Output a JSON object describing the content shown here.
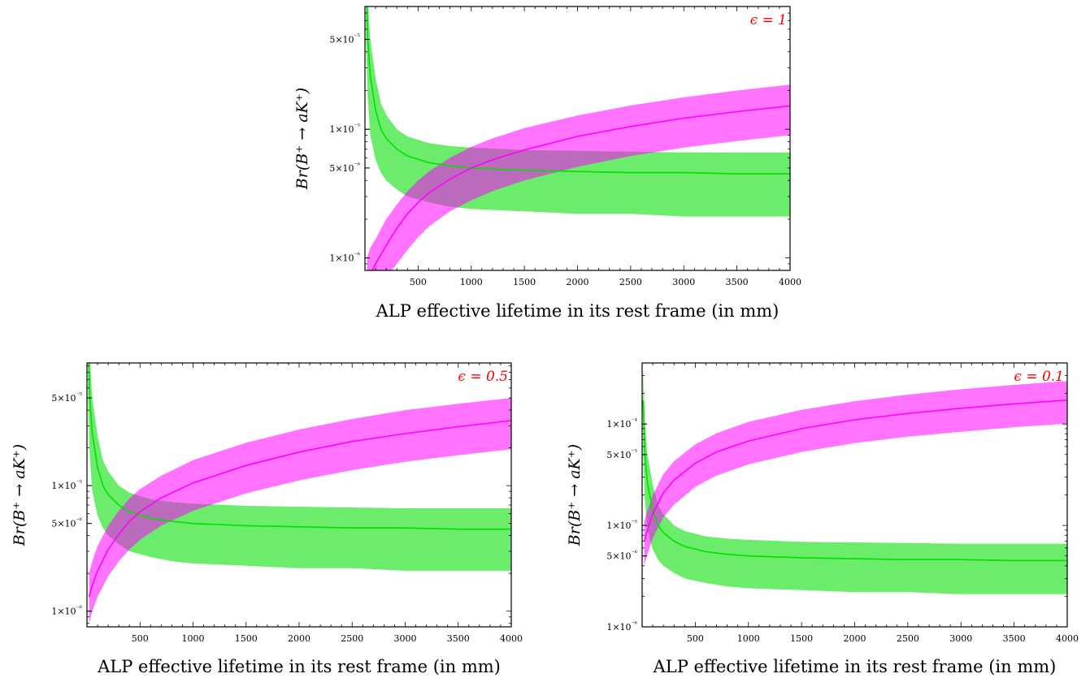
{
  "chart_data": [
    {
      "type": "line",
      "annotation": "ϵ = 1",
      "xlabel": "ALP effective lifetime in its rest frame (in mm)",
      "ylabel": "Br(B⁺ → aK⁺)",
      "yscale": "log",
      "xlim": [
        0,
        4000
      ],
      "ylim": [
        8e-07,
        9e-05
      ],
      "xticks": [
        500,
        1000,
        1500,
        2000,
        2500,
        3000,
        3500,
        4000
      ],
      "xtick_labels": [
        "500",
        "1000",
        "1500",
        "2000",
        "2500",
        "3000",
        "3500",
        "4000"
      ],
      "yticks": [
        1e-06,
        5e-06,
        1e-05,
        5e-05
      ],
      "ytick_labels": [
        "1×10⁻⁶",
        "5×10⁻⁶",
        "1×10⁻⁵",
        "5×10⁻⁵"
      ],
      "grid": false,
      "colors": {
        "series_1": "#00e000",
        "series_2": "#ff00ff",
        "annotation": "#ff0000"
      },
      "series": [
        {
          "x": [
            10,
            25,
            50,
            100,
            150,
            200,
            300,
            400,
            600,
            800,
            1000,
            1500,
            2000,
            2500,
            3000,
            3500,
            4000
          ],
          "central": [
            0.00017,
            5.2e-05,
            2.6e-05,
            1.4e-05,
            1e-05,
            8.5e-06,
            7e-06,
            6.2e-06,
            5.5e-06,
            5.2e-06,
            5e-06,
            4.8e-06,
            4.7e-06,
            4.6e-06,
            4.6e-06,
            4.5e-06,
            4.5e-06
          ],
          "upper": [
            0.00035,
            0.00011,
            5e-05,
            2.5e-05,
            1.6e-05,
            1.3e-05,
            1e-05,
            8.8e-06,
            7.8e-06,
            7.4e-06,
            7.2e-06,
            6.9e-06,
            6.8e-06,
            6.7e-06,
            6.6e-06,
            6.6e-06,
            6.6e-06
          ],
          "lower": [
            5e-05,
            1.8e-05,
            9e-06,
            5.8e-06,
            4.6e-06,
            4e-06,
            3.4e-06,
            3e-06,
            2.7e-06,
            2.5e-06,
            2.4e-06,
            2.3e-06,
            2.2e-06,
            2.2e-06,
            2.1e-06,
            2.1e-06,
            2.1e-06
          ]
        },
        {
          "x": [
            20,
            50,
            100,
            200,
            300,
            400,
            500,
            600,
            800,
            1000,
            1200,
            1500,
            2000,
            2500,
            3000,
            3500,
            4000
          ],
          "central": [
            6e-07,
            7.5e-07,
            9e-07,
            1.25e-06,
            1.7e-06,
            2.2e-06,
            2.7e-06,
            3.2e-06,
            4.1e-06,
            5e-06,
            5.8e-06,
            6.9e-06,
            8.8e-06,
            1.05e-05,
            1.22e-05,
            1.37e-05,
            1.52e-05
          ],
          "upper": [
            1e-06,
            1.2e-06,
            1.4e-06,
            2e-06,
            2.6e-06,
            3.3e-06,
            4e-06,
            4.7e-06,
            6e-06,
            7.3e-06,
            8.5e-06,
            1.02e-05,
            1.28e-05,
            1.53e-05,
            1.77e-05,
            2e-05,
            2.22e-05
          ],
          "lower": [
            4e-07,
            4.5e-07,
            5.5e-07,
            7e-07,
            9e-07,
            1.15e-06,
            1.45e-06,
            1.75e-06,
            2.3e-06,
            2.8e-06,
            3.3e-06,
            4e-06,
            5.1e-06,
            6.2e-06,
            7.2e-06,
            8.1e-06,
            9e-06
          ]
        }
      ]
    },
    {
      "type": "line",
      "annotation": "ϵ = 0.5",
      "xlabel": "ALP effective lifetime in its rest frame (in mm)",
      "ylabel": "Br(B⁺ → aK⁺)",
      "yscale": "log",
      "xlim": [
        0,
        4000
      ],
      "ylim": [
        7.5e-07,
        9.5e-05
      ],
      "xticks": [
        500,
        1000,
        1500,
        2000,
        2500,
        3000,
        3500,
        4000
      ],
      "xtick_labels": [
        "500",
        "1000",
        "1500",
        "2000",
        "2500",
        "3000",
        "3500",
        "4000"
      ],
      "yticks": [
        1e-06,
        5e-06,
        1e-05,
        5e-05
      ],
      "ytick_labels": [
        "1×10⁻⁶",
        "5×10⁻⁶",
        "1×10⁻⁵",
        "5×10⁻⁵"
      ],
      "grid": false,
      "colors": {
        "series_1": "#00e000",
        "series_2": "#ff00ff",
        "annotation": "#ff0000"
      },
      "series": [
        {
          "x": [
            10,
            25,
            50,
            100,
            150,
            200,
            300,
            400,
            600,
            800,
            1000,
            1500,
            2000,
            2500,
            3000,
            3500,
            4000
          ],
          "central": [
            0.00017,
            5.2e-05,
            2.6e-05,
            1.4e-05,
            1e-05,
            8.5e-06,
            7e-06,
            6.2e-06,
            5.5e-06,
            5.2e-06,
            5e-06,
            4.8e-06,
            4.7e-06,
            4.6e-06,
            4.6e-06,
            4.5e-06,
            4.5e-06
          ],
          "upper": [
            0.00035,
            0.00011,
            5e-05,
            2.5e-05,
            1.6e-05,
            1.3e-05,
            1e-05,
            8.8e-06,
            7.8e-06,
            7.4e-06,
            7.2e-06,
            6.9e-06,
            6.8e-06,
            6.7e-06,
            6.6e-06,
            6.6e-06,
            6.6e-06
          ],
          "lower": [
            5e-05,
            1.8e-05,
            9e-06,
            5.8e-06,
            4.6e-06,
            4e-06,
            3.4e-06,
            3e-06,
            2.7e-06,
            2.5e-06,
            2.4e-06,
            2.3e-06,
            2.2e-06,
            2.2e-06,
            2.1e-06,
            2.1e-06,
            2.1e-06
          ]
        },
        {
          "x": [
            20,
            50,
            100,
            200,
            300,
            400,
            500,
            700,
            1000,
            1500,
            2000,
            2500,
            3000,
            3500,
            4000
          ],
          "central": [
            1.3e-06,
            1.6e-06,
            2.1e-06,
            3.1e-06,
            4.1e-06,
            5.2e-06,
            6.2e-06,
            8e-06,
            1.05e-05,
            1.45e-05,
            1.85e-05,
            2.25e-05,
            2.6e-05,
            2.95e-05,
            3.3e-05
          ],
          "upper": [
            2e-06,
            2.5e-06,
            3.3e-06,
            4.8e-06,
            6.3e-06,
            7.9e-06,
            9.4e-06,
            1.2e-05,
            1.6e-05,
            2.2e-05,
            2.8e-05,
            3.4e-05,
            4e-05,
            4.5e-05,
            5e-05
          ],
          "lower": [
            8e-07,
            1e-06,
            1.3e-06,
            1.9e-06,
            2.5e-06,
            3.1e-06,
            3.7e-06,
            4.8e-06,
            6.3e-06,
            8.7e-06,
            1.1e-05,
            1.33e-05,
            1.55e-05,
            1.75e-05,
            1.95e-05
          ]
        }
      ]
    },
    {
      "type": "line",
      "annotation": "ϵ = 0.1",
      "xlabel": "ALP effective lifetime in its rest frame (in mm)",
      "ylabel": "Br(B⁺ → aK⁺)",
      "yscale": "log",
      "xlim": [
        0,
        4000
      ],
      "ylim": [
        1e-06,
        0.0004
      ],
      "xticks": [
        500,
        1000,
        1500,
        2000,
        2500,
        3000,
        3500,
        4000
      ],
      "xtick_labels": [
        "500",
        "1000",
        "1500",
        "2000",
        "2500",
        "3000",
        "3500",
        "4000"
      ],
      "yticks": [
        1e-06,
        5e-06,
        1e-05,
        5e-05,
        0.0001
      ],
      "ytick_labels": [
        "1×10⁻⁶",
        "5×10⁻⁶",
        "1×10⁻⁵",
        "5×10⁻⁵",
        "1×10⁻⁴"
      ],
      "grid": false,
      "colors": {
        "series_1": "#00e000",
        "series_2": "#ff00ff",
        "annotation": "#ff0000"
      },
      "series": [
        {
          "x": [
            10,
            25,
            50,
            100,
            150,
            200,
            300,
            400,
            600,
            800,
            1000,
            1500,
            2000,
            2500,
            3000,
            3500,
            4000
          ],
          "central": [
            0.00017,
            5.2e-05,
            2.6e-05,
            1.4e-05,
            1e-05,
            8.5e-06,
            7e-06,
            6.2e-06,
            5.5e-06,
            5.2e-06,
            5e-06,
            4.8e-06,
            4.7e-06,
            4.6e-06,
            4.6e-06,
            4.5e-06,
            4.5e-06
          ],
          "upper": [
            0.00035,
            0.00011,
            5e-05,
            2.5e-05,
            1.6e-05,
            1.3e-05,
            1e-05,
            8.8e-06,
            7.8e-06,
            7.4e-06,
            7.2e-06,
            6.9e-06,
            6.8e-06,
            6.7e-06,
            6.6e-06,
            6.6e-06,
            6.6e-06
          ],
          "lower": [
            5e-05,
            1.8e-05,
            9e-06,
            5.8e-06,
            4.6e-06,
            4e-06,
            3.4e-06,
            3e-06,
            2.7e-06,
            2.5e-06,
            2.4e-06,
            2.3e-06,
            2.2e-06,
            2.2e-06,
            2.1e-06,
            2.1e-06,
            2.1e-06
          ]
        },
        {
          "x": [
            20,
            50,
            100,
            200,
            300,
            500,
            700,
            1000,
            1500,
            2000,
            2500,
            3000,
            3500,
            4000
          ],
          "central": [
            7e-06,
            9e-06,
            1.3e-05,
            2.1e-05,
            2.8e-05,
            4.1e-05,
            5.3e-05,
            6.8e-05,
            9e-05,
            0.00011,
            0.000127,
            0.000143,
            0.000158,
            0.000172
          ],
          "upper": [
            1.1e-05,
            1.4e-05,
            2e-05,
            3.2e-05,
            4.3e-05,
            6.3e-05,
            8.1e-05,
            0.000105,
            0.000138,
            0.000168,
            0.000195,
            0.00022,
            0.000243,
            0.000265
          ],
          "lower": [
            4e-06,
            5.2e-06,
            7.5e-06,
            1.2e-05,
            1.6e-05,
            2.4e-05,
            3.1e-05,
            4e-05,
            5.3e-05,
            6.5e-05,
            7.5e-05,
            8.4e-05,
            9.3e-05,
            0.000101
          ]
        }
      ]
    }
  ]
}
